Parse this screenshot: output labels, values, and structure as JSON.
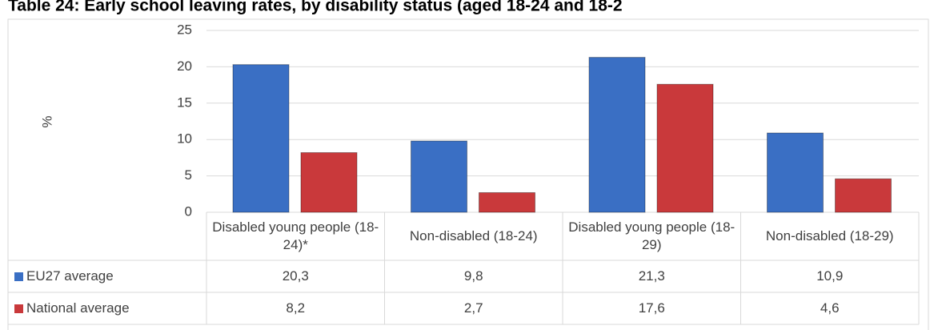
{
  "chart_data": {
    "type": "bar",
    "title": "Table 24: Early school leaving rates, by disability status (aged 18-24 and 18-2",
    "y_label": "%",
    "categories": [
      "Disabled young people (18-24)*",
      "Non-disabled (18-24)",
      "Disabled young people (18-29)",
      "Non-disabled (18-29)"
    ],
    "series": [
      {
        "name": "EU27 average",
        "color": "#3a6fc4",
        "values": [
          20.3,
          9.8,
          21.3,
          10.9
        ],
        "value_labels": [
          "20,3",
          "9,8",
          "21,3",
          "10,9"
        ]
      },
      {
        "name": "National average",
        "color": "#c9393b",
        "values": [
          8.2,
          2.7,
          17.6,
          4.6
        ],
        "value_labels": [
          "8,2",
          "2,7",
          "17,6",
          "4,6"
        ]
      }
    ],
    "ylim": [
      0,
      25
    ],
    "yticks": [
      0,
      5,
      10,
      15,
      20,
      25
    ],
    "grid": true
  }
}
